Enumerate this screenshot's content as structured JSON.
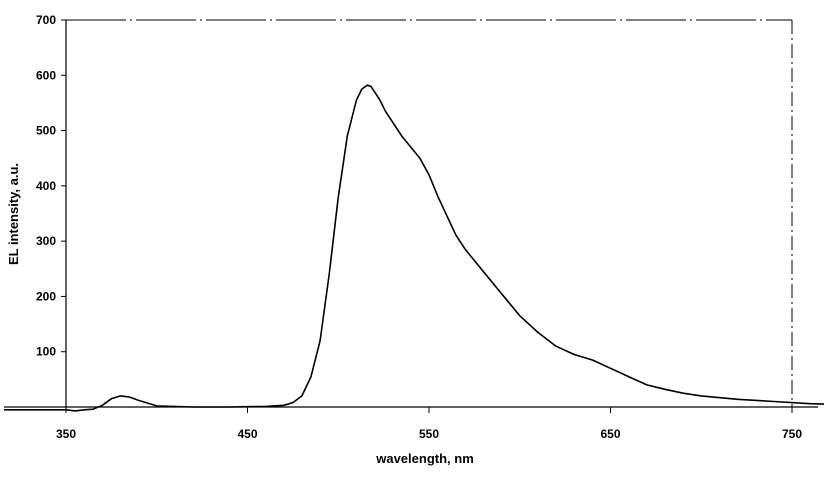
{
  "chart_data": {
    "type": "line",
    "title": "",
    "xlabel": "wavelength, nm",
    "ylabel": "EL intensity, a.u.",
    "xlim": [
      350,
      770
    ],
    "ylim": [
      0,
      700
    ],
    "x_ticks": [
      350,
      450,
      550,
      650,
      750
    ],
    "y_ticks": [
      100,
      200,
      300,
      400,
      500,
      600,
      700
    ],
    "grid": false,
    "series": [
      {
        "color": "#000000",
        "x": [
          350,
          355,
          360,
          365,
          370,
          375,
          380,
          385,
          390,
          400,
          420,
          440,
          460,
          470,
          475,
          480,
          485,
          490,
          495,
          500,
          505,
          510,
          513,
          516,
          518,
          520,
          523,
          526,
          530,
          535,
          540,
          545,
          550,
          555,
          560,
          565,
          570,
          580,
          590,
          600,
          610,
          620,
          630,
          640,
          650,
          660,
          670,
          680,
          690,
          700,
          720,
          740,
          760,
          770
        ],
        "y": [
          -5,
          -7,
          -5,
          -4,
          3,
          15,
          20,
          18,
          12,
          2,
          0,
          0,
          1,
          3,
          8,
          20,
          55,
          120,
          240,
          380,
          490,
          555,
          575,
          582,
          580,
          570,
          555,
          535,
          515,
          490,
          470,
          450,
          420,
          380,
          345,
          310,
          285,
          245,
          205,
          165,
          135,
          110,
          95,
          85,
          70,
          55,
          40,
          32,
          25,
          20,
          14,
          10,
          6,
          5
        ]
      }
    ]
  }
}
